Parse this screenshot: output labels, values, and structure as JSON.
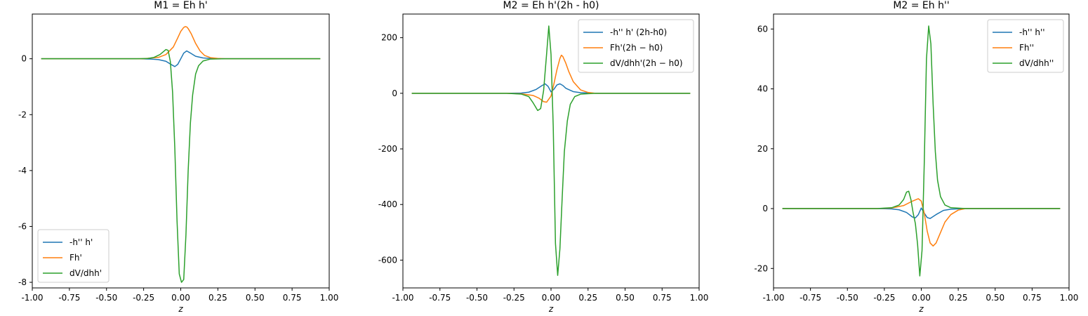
{
  "chart_data": [
    {
      "type": "line",
      "title": "M1 = Eh h'",
      "xlabel": "z",
      "ylabel": "",
      "xlim": [
        -1.0,
        1.0
      ],
      "ylim": [
        -8.2,
        1.6
      ],
      "xticks": [
        -1.0,
        -0.75,
        -0.5,
        -0.25,
        0.0,
        0.25,
        0.5,
        0.75,
        1.0
      ],
      "xtick_labels": [
        "-1.00",
        "-0.75",
        "-0.50",
        "-0.25",
        "0.00",
        "0.25",
        "0.50",
        "0.75",
        "1.00"
      ],
      "yticks": [
        -8,
        -6,
        -4,
        -2,
        0
      ],
      "ytick_labels": [
        "-8",
        "-6",
        "-4",
        "-2",
        "0"
      ],
      "legend_position": "lower-left",
      "series": [
        {
          "name": "-h'' h'",
          "color": "#1f77b4",
          "x": [
            -0.94,
            -0.3,
            -0.2,
            -0.15,
            -0.1,
            -0.06,
            -0.04,
            -0.02,
            0.0,
            0.02,
            0.04,
            0.06,
            0.1,
            0.15,
            0.2,
            0.3,
            0.94
          ],
          "y": [
            0,
            0,
            -0.01,
            -0.03,
            -0.09,
            -0.22,
            -0.28,
            -0.2,
            0.0,
            0.2,
            0.28,
            0.22,
            0.09,
            0.03,
            0.01,
            0,
            0
          ]
        },
        {
          "name": "Fh'",
          "color": "#ff7f0e",
          "x": [
            -0.94,
            -0.25,
            -0.15,
            -0.1,
            -0.05,
            -0.02,
            0.0,
            0.02,
            0.03,
            0.04,
            0.05,
            0.07,
            0.1,
            0.13,
            0.16,
            0.2,
            0.25,
            0.3,
            0.94
          ],
          "y": [
            0,
            0,
            0.05,
            0.15,
            0.42,
            0.75,
            0.98,
            1.12,
            1.15,
            1.14,
            1.08,
            0.9,
            0.55,
            0.28,
            0.12,
            0.04,
            0.01,
            0,
            0
          ]
        },
        {
          "name": "dV/dhh'",
          "color": "#2ca02c",
          "x": [
            -0.94,
            -0.3,
            -0.22,
            -0.18,
            -0.14,
            -0.1,
            -0.085,
            -0.07,
            -0.055,
            -0.04,
            -0.025,
            -0.01,
            0.005,
            0.02,
            0.035,
            0.05,
            0.065,
            0.08,
            0.1,
            0.12,
            0.15,
            0.2,
            0.3,
            0.94
          ],
          "y": [
            0,
            0,
            0.01,
            0.05,
            0.15,
            0.33,
            0.3,
            -0.1,
            -1.2,
            -3.2,
            -5.8,
            -7.7,
            -8.0,
            -7.9,
            -6.3,
            -4.0,
            -2.3,
            -1.3,
            -0.55,
            -0.25,
            -0.08,
            -0.01,
            0,
            0
          ]
        }
      ]
    },
    {
      "type": "line",
      "title": "M2 = Eh h'(2h - h0)",
      "xlabel": "z",
      "ylabel": "",
      "xlim": [
        -1.0,
        1.0
      ],
      "ylim": [
        -700,
        285
      ],
      "xticks": [
        -1.0,
        -0.75,
        -0.5,
        -0.25,
        0.0,
        0.25,
        0.5,
        0.75,
        1.0
      ],
      "xtick_labels": [
        "-1.00",
        "-0.75",
        "-0.50",
        "-0.25",
        "0.00",
        "0.25",
        "0.50",
        "0.75",
        "1.00"
      ],
      "yticks": [
        -600,
        -400,
        -200,
        0,
        200
      ],
      "ytick_labels": [
        "-600",
        "-400",
        "-200",
        "0",
        "200"
      ],
      "legend_position": "upper-right",
      "series": [
        {
          "name": "-h'' h' (2h-h0)",
          "color": "#1f77b4",
          "x": [
            -0.94,
            -0.3,
            -0.2,
            -0.15,
            -0.1,
            -0.06,
            -0.04,
            -0.02,
            0.0,
            0.02,
            0.04,
            0.06,
            0.08,
            0.1,
            0.15,
            0.2,
            0.3,
            0.94
          ],
          "y": [
            0,
            0,
            1,
            4,
            14,
            28,
            34,
            25,
            5,
            15,
            30,
            34,
            28,
            18,
            6,
            2,
            0,
            0
          ]
        },
        {
          "name": "Fh'(2h − h0)",
          "color": "#ff7f0e",
          "x": [
            -0.94,
            -0.3,
            -0.2,
            -0.12,
            -0.08,
            -0.05,
            -0.03,
            0.0,
            0.02,
            0.04,
            0.06,
            0.07,
            0.08,
            0.1,
            0.12,
            0.15,
            0.2,
            0.25,
            0.3,
            0.94
          ],
          "y": [
            0,
            0,
            -2,
            -8,
            -18,
            -30,
            -32,
            -10,
            35,
            85,
            125,
            137,
            132,
            108,
            78,
            42,
            12,
            3,
            0,
            0
          ]
        },
        {
          "name": "dV/dhh'(2h − h0)",
          "color": "#2ca02c",
          "x": [
            -0.94,
            -0.3,
            -0.2,
            -0.15,
            -0.12,
            -0.09,
            -0.07,
            -0.05,
            -0.03,
            -0.015,
            0.0,
            0.015,
            0.03,
            0.045,
            0.06,
            0.075,
            0.09,
            0.11,
            0.13,
            0.16,
            0.2,
            0.3,
            0.94
          ],
          "y": [
            0,
            0,
            -3,
            -12,
            -35,
            -62,
            -55,
            10,
            140,
            242,
            140,
            -120,
            -540,
            -655,
            -560,
            -380,
            -210,
            -100,
            -40,
            -12,
            -3,
            0,
            0
          ]
        }
      ]
    },
    {
      "type": "line",
      "title": "M2 = Eh h''",
      "xlabel": "z",
      "ylabel": "",
      "xlim": [
        -1.0,
        1.0
      ],
      "ylim": [
        -26.5,
        65
      ],
      "xticks": [
        -1.0,
        -0.75,
        -0.5,
        -0.25,
        0.0,
        0.25,
        0.5,
        0.75,
        1.0
      ],
      "xtick_labels": [
        "-1.00",
        "-0.75",
        "-0.50",
        "-0.25",
        "0.00",
        "0.25",
        "0.50",
        "0.75",
        "1.00"
      ],
      "yticks": [
        -20,
        0,
        20,
        40,
        60
      ],
      "ytick_labels": [
        "-20",
        "0",
        "20",
        "40",
        "60"
      ],
      "legend_position": "upper-right",
      "series": [
        {
          "name": "-h'' h''",
          "color": "#1f77b4",
          "x": [
            -0.94,
            -0.3,
            -0.2,
            -0.15,
            -0.1,
            -0.06,
            -0.04,
            -0.02,
            0.0,
            0.02,
            0.04,
            0.06,
            0.1,
            0.15,
            0.2,
            0.3,
            0.94
          ],
          "y": [
            0,
            0,
            -0.1,
            -0.4,
            -1.3,
            -2.8,
            -3.1,
            -2.0,
            0.2,
            -1.5,
            -3.0,
            -3.3,
            -2.0,
            -0.6,
            -0.2,
            0,
            0
          ]
        },
        {
          "name": "Fh''",
          "color": "#ff7f0e",
          "x": [
            -0.94,
            -0.3,
            -0.2,
            -0.12,
            -0.06,
            -0.02,
            0.0,
            0.02,
            0.04,
            0.06,
            0.08,
            0.1,
            0.13,
            0.16,
            0.2,
            0.25,
            0.3,
            0.94
          ],
          "y": [
            0,
            0,
            0.2,
            1.0,
            2.5,
            3.3,
            2.5,
            -1.5,
            -7.5,
            -11.5,
            -12.5,
            -11.5,
            -8.0,
            -4.5,
            -2.0,
            -0.5,
            0,
            0
          ]
        },
        {
          "name": "dV/dhh''",
          "color": "#2ca02c",
          "x": [
            -0.94,
            -0.3,
            -0.2,
            -0.15,
            -0.12,
            -0.1,
            -0.085,
            -0.07,
            -0.055,
            -0.04,
            -0.025,
            -0.01,
            0.005,
            0.02,
            0.035,
            0.05,
            0.065,
            0.08,
            0.095,
            0.11,
            0.13,
            0.16,
            0.2,
            0.3,
            0.94
          ],
          "y": [
            0,
            0,
            0.3,
            1.2,
            3.0,
            5.5,
            5.8,
            3.0,
            -1.5,
            -5.0,
            -12.0,
            -22.5,
            -14.0,
            15.0,
            50.0,
            61.0,
            55.0,
            35.0,
            19.0,
            9.5,
            4.0,
            1.2,
            0.3,
            0,
            0
          ]
        }
      ]
    }
  ]
}
